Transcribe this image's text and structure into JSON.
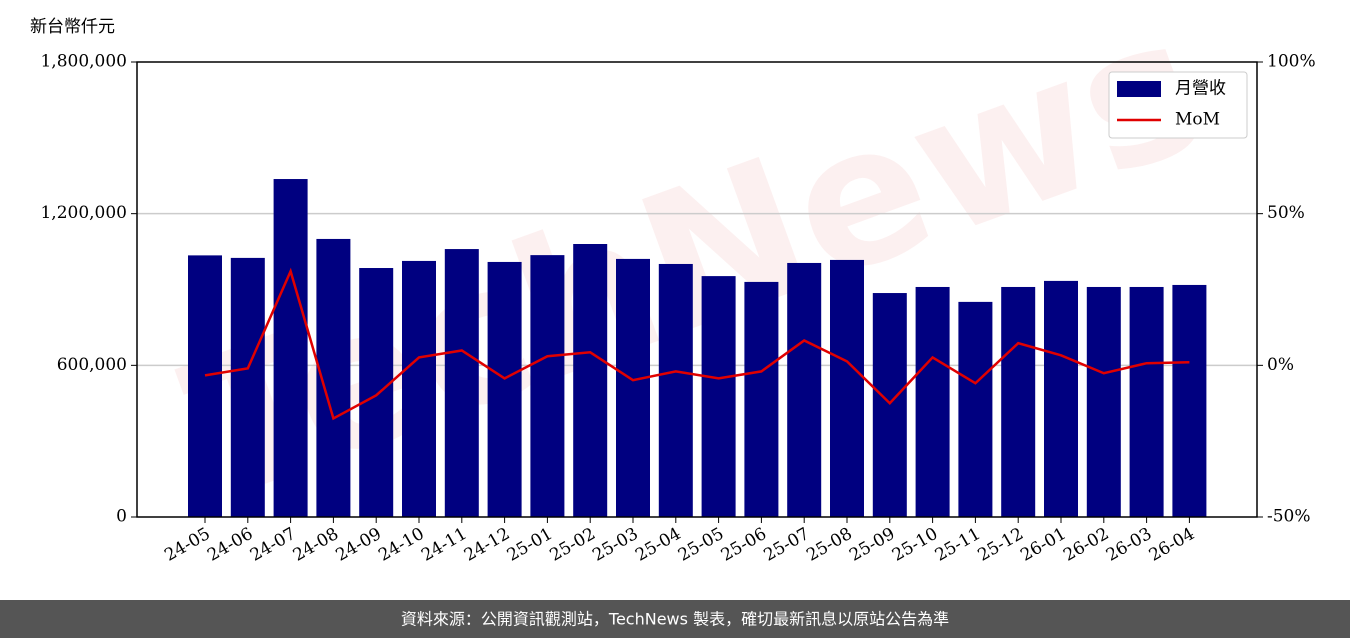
{
  "chart_data": {
    "type": "bar_line",
    "y_label": "新台幣仟元",
    "watermark": "TechNews",
    "categories": [
      "24-05",
      "24-06",
      "24-07",
      "24-08",
      "24-09",
      "24-10",
      "24-11",
      "24-12",
      "25-01",
      "25-02",
      "25-03",
      "25-04",
      "25-05",
      "25-06",
      "25-07",
      "25-08",
      "25-09",
      "25-10",
      "25-11",
      "25-12",
      "26-01",
      "26-02",
      "26-03",
      "26-04"
    ],
    "series": [
      {
        "name": "月營收",
        "type": "bar",
        "color": "#000080",
        "values": [
          1035000,
          1025000,
          1337000,
          1100000,
          985000,
          1013000,
          1060000,
          1009000,
          1036000,
          1080000,
          1021000,
          1001000,
          953000,
          930000,
          1005000,
          1017000,
          886000,
          910000,
          851000,
          910000,
          934000,
          910000,
          910000,
          918000
        ]
      },
      {
        "name": "MoM",
        "type": "line",
        "axis": "y2",
        "color": "#e00000",
        "values": [
          -3.3,
          -1.0,
          31.0,
          -17.5,
          -9.9,
          2.6,
          4.9,
          -4.3,
          3.0,
          4.3,
          -4.9,
          -2.0,
          -4.3,
          -2.0,
          8.2,
          1.3,
          -12.5,
          2.6,
          -5.9,
          7.3,
          3.3,
          -2.6,
          0.7,
          1.0
        ]
      }
    ],
    "ylim": [
      0,
      1800000
    ],
    "yticks": [
      {
        "value": 0,
        "label": "0"
      },
      {
        "value": 600000,
        "label": "600,000"
      },
      {
        "value": 1200000,
        "label": "1,200,000"
      },
      {
        "value": 1800000,
        "label": "1,800,000"
      }
    ],
    "y2lim": [
      -50,
      100
    ],
    "y2ticks": [
      {
        "value": -50,
        "label": "-50%"
      },
      {
        "value": 0,
        "label": "0%"
      },
      {
        "value": 50,
        "label": "50%"
      },
      {
        "value": 100,
        "label": "100%"
      }
    ],
    "grid": true,
    "legend": "upper right",
    "footer": "資料來源：公開資訊觀測站，TechNews 製表，確切最新訊息以原站公告為準"
  }
}
